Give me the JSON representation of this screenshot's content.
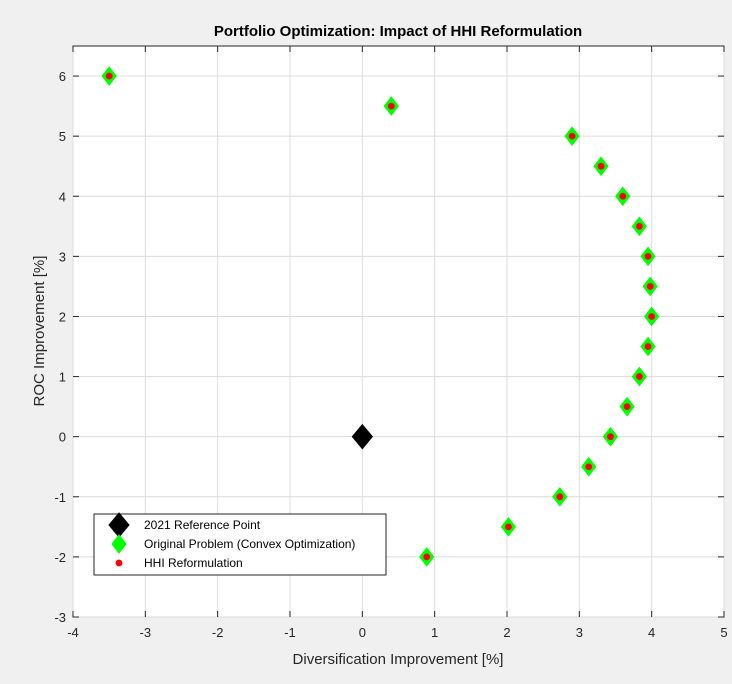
{
  "chart_data": {
    "type": "scatter",
    "title": "Portfolio Optimization: Impact of HHI Reformulation",
    "xlabel": "Diversification Improvement [%]",
    "ylabel": "ROC Improvement [%]",
    "xlim": [
      -4,
      5
    ],
    "ylim": [
      -3,
      6.5
    ],
    "xticks": [
      -4,
      -3,
      -2,
      -1,
      0,
      1,
      2,
      3,
      4,
      5
    ],
    "yticks": [
      -3,
      -2,
      -1,
      0,
      1,
      2,
      3,
      4,
      5,
      6
    ],
    "grid": true,
    "legend_position": "bottom-left",
    "series": [
      {
        "name": "2021 Reference Point",
        "marker": "diamond",
        "color": "#000000",
        "points": [
          {
            "x": 0,
            "y": 0
          }
        ]
      },
      {
        "name": "Original Problem (Convex Optimization)",
        "marker": "diamond",
        "color": "#00ff00",
        "points": [
          {
            "x": -3.5,
            "y": 6.0
          },
          {
            "x": 0.4,
            "y": 5.5
          },
          {
            "x": 2.9,
            "y": 5.0
          },
          {
            "x": 3.3,
            "y": 4.5
          },
          {
            "x": 3.6,
            "y": 4.0
          },
          {
            "x": 3.83,
            "y": 3.5
          },
          {
            "x": 3.95,
            "y": 3.0
          },
          {
            "x": 3.98,
            "y": 2.5
          },
          {
            "x": 4.0,
            "y": 2.0
          },
          {
            "x": 3.95,
            "y": 1.5
          },
          {
            "x": 3.83,
            "y": 1.0
          },
          {
            "x": 3.66,
            "y": 0.5
          },
          {
            "x": 3.43,
            "y": 0.0
          },
          {
            "x": 3.13,
            "y": -0.5
          },
          {
            "x": 2.73,
            "y": -1.0
          },
          {
            "x": 2.02,
            "y": -1.5
          },
          {
            "x": 0.89,
            "y": -2.0
          }
        ]
      },
      {
        "name": "HHI Reformulation",
        "marker": "circle",
        "color": "#ff0000",
        "points": [
          {
            "x": -3.5,
            "y": 6.0
          },
          {
            "x": 0.4,
            "y": 5.5
          },
          {
            "x": 2.9,
            "y": 5.0
          },
          {
            "x": 3.3,
            "y": 4.5
          },
          {
            "x": 3.6,
            "y": 4.0
          },
          {
            "x": 3.83,
            "y": 3.5
          },
          {
            "x": 3.95,
            "y": 3.0
          },
          {
            "x": 3.98,
            "y": 2.5
          },
          {
            "x": 4.0,
            "y": 2.0
          },
          {
            "x": 3.95,
            "y": 1.5
          },
          {
            "x": 3.83,
            "y": 1.0
          },
          {
            "x": 3.66,
            "y": 0.5
          },
          {
            "x": 3.43,
            "y": 0.0
          },
          {
            "x": 3.13,
            "y": -0.5
          },
          {
            "x": 2.73,
            "y": -1.0
          },
          {
            "x": 2.02,
            "y": -1.5
          },
          {
            "x": 0.89,
            "y": -2.0
          }
        ]
      }
    ]
  }
}
